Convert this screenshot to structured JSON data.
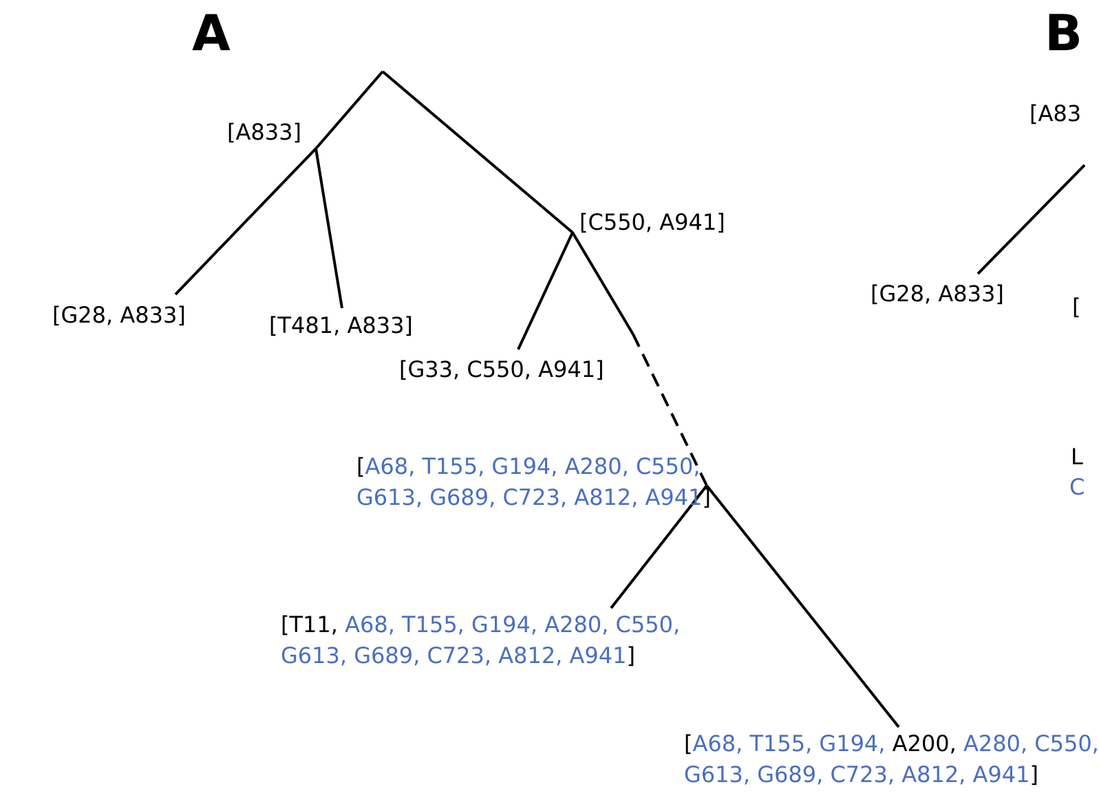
{
  "panels": {
    "a": "A",
    "b": "B"
  },
  "colors": {
    "edge": "#000000",
    "highlight": "#4A6FC0",
    "text": "#000000"
  },
  "panel_a": {
    "nodes": {
      "n_a833": "[A833]",
      "n_c550_a941": "[C550, A941]",
      "leaf_g28": "[G28, A833]",
      "leaf_t481": "[T481, A833]",
      "leaf_g33": "[G33, C550, A941]",
      "anc": {
        "open": "[",
        "line1": "A68, T155, G194, A280, C550,",
        "line2": "G613, G689, C723, A812, A941",
        "close": "]"
      },
      "t11": {
        "open": "[T11, ",
        "line1": "A68, T155, G194, A280, C550,",
        "line2": "G613, G689, C723, A812, A941",
        "close": "]"
      },
      "a200": {
        "open": "[",
        "line1a": "A68, T155, G194, ",
        "mid": "A200, ",
        "line1b": "A280, C550,",
        "line2": "G613, G689, C723, A812, A941",
        "close": "]"
      }
    }
  },
  "panel_b": {
    "nodes": {
      "n_a833_partial": "[A83",
      "leaf_g28": "[G28, A833]",
      "cut_bracket": "[",
      "cut_l": "L",
      "cut_c": "C"
    }
  }
}
